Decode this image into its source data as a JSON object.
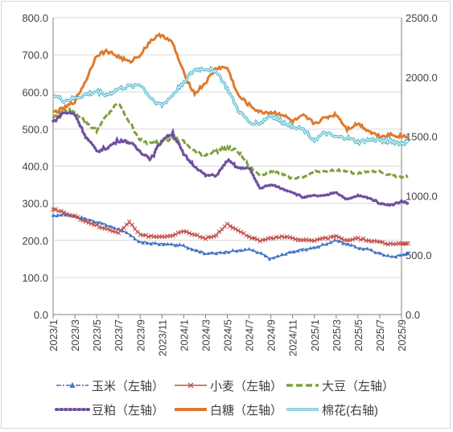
{
  "chart_data": {
    "type": "line",
    "title": "",
    "x_labels": [
      "2023/1",
      "2023/3",
      "2023/5",
      "2023/7",
      "2023/9",
      "2023/11",
      "2024/1",
      "2024/3",
      "2024/5",
      "2024/7",
      "2024/9",
      "2024/11",
      "2025/1",
      "2025/3",
      "2025/5",
      "2025/7",
      "2025/9"
    ],
    "y_left": {
      "min": 0,
      "max": 800,
      "ticks": [
        "0.0",
        "100.0",
        "200.0",
        "300.0",
        "400.0",
        "500.0",
        "600.0",
        "700.0",
        "800.0"
      ]
    },
    "y_right": {
      "min": 0,
      "max": 2500,
      "ticks": [
        "0.0",
        "500.0",
        "1000.0",
        "1500.0",
        "2000.0",
        "2500.0"
      ]
    },
    "grid": true,
    "legend_position": "bottom",
    "series": [
      {
        "name": "玉米（左轴）",
        "axis": "left",
        "color": "#4472c4",
        "style": "solid-triangle",
        "points": [
          [
            0,
            265
          ],
          [
            0.5,
            270
          ],
          [
            1,
            265
          ],
          [
            1.5,
            258
          ],
          [
            2,
            250
          ],
          [
            2.5,
            240
          ],
          [
            3,
            230
          ],
          [
            3.5,
            215
          ],
          [
            4,
            195
          ],
          [
            4.5,
            192
          ],
          [
            5,
            190
          ],
          [
            5.5,
            188
          ],
          [
            6,
            185
          ],
          [
            6.5,
            175
          ],
          [
            7,
            165
          ],
          [
            7.5,
            165
          ],
          [
            8,
            170
          ],
          [
            8.5,
            172
          ],
          [
            9,
            175
          ],
          [
            9.5,
            165
          ],
          [
            10,
            150
          ],
          [
            10.5,
            160
          ],
          [
            11,
            170
          ],
          [
            11.5,
            175
          ],
          [
            12,
            180
          ],
          [
            12.5,
            190
          ],
          [
            13,
            200
          ],
          [
            13.5,
            190
          ],
          [
            14,
            180
          ],
          [
            14.5,
            175
          ],
          [
            15,
            165
          ],
          [
            15.5,
            155
          ],
          [
            16,
            160
          ],
          [
            16.3,
            165
          ]
        ]
      },
      {
        "name": "小麦（左轴）",
        "axis": "left",
        "color": "#c0504d",
        "style": "solid-x",
        "points": [
          [
            0,
            285
          ],
          [
            0.5,
            275
          ],
          [
            1,
            265
          ],
          [
            1.5,
            250
          ],
          [
            2,
            240
          ],
          [
            2.5,
            230
          ],
          [
            3,
            220
          ],
          [
            3.5,
            250
          ],
          [
            4,
            215
          ],
          [
            4.5,
            210
          ],
          [
            5,
            208
          ],
          [
            5.5,
            215
          ],
          [
            6,
            225
          ],
          [
            6.5,
            215
          ],
          [
            7,
            205
          ],
          [
            7.5,
            215
          ],
          [
            8,
            245
          ],
          [
            8.5,
            225
          ],
          [
            9,
            210
          ],
          [
            9.5,
            200
          ],
          [
            10,
            205
          ],
          [
            10.5,
            210
          ],
          [
            11,
            205
          ],
          [
            11.5,
            200
          ],
          [
            12,
            200
          ],
          [
            12.5,
            205
          ],
          [
            13,
            210
          ],
          [
            13.5,
            200
          ],
          [
            14,
            205
          ],
          [
            14.5,
            200
          ],
          [
            15,
            195
          ],
          [
            15.5,
            190
          ],
          [
            16,
            190
          ],
          [
            16.3,
            192
          ]
        ]
      },
      {
        "name": "大豆（左轴）",
        "axis": "left",
        "color": "#7f9f3f",
        "style": "dashed",
        "points": [
          [
            0,
            530
          ],
          [
            0.5,
            555
          ],
          [
            1,
            545
          ],
          [
            1.5,
            520
          ],
          [
            2,
            495
          ],
          [
            2.5,
            540
          ],
          [
            3,
            570
          ],
          [
            3.5,
            520
          ],
          [
            4,
            470
          ],
          [
            4.5,
            460
          ],
          [
            5,
            470
          ],
          [
            5.5,
            475
          ],
          [
            6,
            465
          ],
          [
            6.5,
            440
          ],
          [
            7,
            430
          ],
          [
            7.5,
            440
          ],
          [
            8,
            450
          ],
          [
            8.5,
            440
          ],
          [
            9,
            400
          ],
          [
            9.5,
            375
          ],
          [
            10,
            385
          ],
          [
            10.5,
            380
          ],
          [
            11,
            365
          ],
          [
            11.5,
            370
          ],
          [
            12,
            385
          ],
          [
            12.5,
            385
          ],
          [
            13,
            390
          ],
          [
            13.5,
            385
          ],
          [
            14,
            380
          ],
          [
            14.5,
            385
          ],
          [
            15,
            385
          ],
          [
            15.5,
            375
          ],
          [
            16,
            370
          ],
          [
            16.3,
            372
          ]
        ]
      },
      {
        "name": "豆粕（左轴）",
        "axis": "left",
        "color": "#6f4f9f",
        "style": "dotted",
        "points": [
          [
            0,
            520
          ],
          [
            0.5,
            545
          ],
          [
            1,
            540
          ],
          [
            1.5,
            480
          ],
          [
            2,
            440
          ],
          [
            2.5,
            450
          ],
          [
            3,
            470
          ],
          [
            3.5,
            465
          ],
          [
            4,
            440
          ],
          [
            4.5,
            420
          ],
          [
            5,
            470
          ],
          [
            5.5,
            490
          ],
          [
            6,
            430
          ],
          [
            6.5,
            400
          ],
          [
            7,
            375
          ],
          [
            7.5,
            375
          ],
          [
            8,
            415
          ],
          [
            8.5,
            395
          ],
          [
            9,
            395
          ],
          [
            9.5,
            340
          ],
          [
            10,
            350
          ],
          [
            10.5,
            340
          ],
          [
            11,
            330
          ],
          [
            11.5,
            315
          ],
          [
            12,
            320
          ],
          [
            12.5,
            320
          ],
          [
            13,
            330
          ],
          [
            13.5,
            310
          ],
          [
            14,
            320
          ],
          [
            14.5,
            315
          ],
          [
            15,
            300
          ],
          [
            15.5,
            295
          ],
          [
            16,
            305
          ],
          [
            16.3,
            300
          ]
        ]
      },
      {
        "name": "白糖（左轴）",
        "axis": "left",
        "color": "#e07a2b",
        "style": "solid-thick",
        "points": [
          [
            0,
            545
          ],
          [
            0.5,
            555
          ],
          [
            1,
            575
          ],
          [
            1.5,
            630
          ],
          [
            2,
            700
          ],
          [
            2.5,
            710
          ],
          [
            3,
            695
          ],
          [
            3.5,
            680
          ],
          [
            4,
            700
          ],
          [
            4.5,
            740
          ],
          [
            5,
            755
          ],
          [
            5.5,
            730
          ],
          [
            6,
            650
          ],
          [
            6.5,
            595
          ],
          [
            7,
            625
          ],
          [
            7.5,
            665
          ],
          [
            8,
            665
          ],
          [
            8.5,
            590
          ],
          [
            9,
            565
          ],
          [
            9.5,
            545
          ],
          [
            10,
            545
          ],
          [
            10.5,
            540
          ],
          [
            11,
            520
          ],
          [
            11.5,
            535
          ],
          [
            12,
            515
          ],
          [
            12.5,
            530
          ],
          [
            13,
            540
          ],
          [
            13.5,
            500
          ],
          [
            14,
            515
          ],
          [
            14.5,
            495
          ],
          [
            15,
            480
          ],
          [
            15.5,
            485
          ],
          [
            16,
            480
          ],
          [
            16.3,
            482
          ]
        ]
      },
      {
        "name": "棉花(右轴)",
        "axis": "right",
        "color": "#4ab4c8",
        "style": "double",
        "points": [
          [
            0,
            1850
          ],
          [
            0.5,
            1800
          ],
          [
            1,
            1820
          ],
          [
            1.5,
            1850
          ],
          [
            2,
            1880
          ],
          [
            2.5,
            1850
          ],
          [
            3,
            1900
          ],
          [
            3.5,
            1920
          ],
          [
            4,
            1940
          ],
          [
            4.5,
            1820
          ],
          [
            5,
            1760
          ],
          [
            5.5,
            1850
          ],
          [
            6,
            1960
          ],
          [
            6.5,
            2060
          ],
          [
            7,
            2070
          ],
          [
            7.5,
            2050
          ],
          [
            8,
            1900
          ],
          [
            8.5,
            1720
          ],
          [
            9,
            1620
          ],
          [
            9.5,
            1610
          ],
          [
            10,
            1680
          ],
          [
            10.5,
            1620
          ],
          [
            11,
            1590
          ],
          [
            11.5,
            1560
          ],
          [
            12,
            1470
          ],
          [
            12.5,
            1530
          ],
          [
            13,
            1490
          ],
          [
            13.5,
            1490
          ],
          [
            14,
            1450
          ],
          [
            14.5,
            1470
          ],
          [
            15,
            1470
          ],
          [
            15.5,
            1460
          ],
          [
            16,
            1440
          ],
          [
            16.3,
            1450
          ]
        ]
      }
    ]
  }
}
